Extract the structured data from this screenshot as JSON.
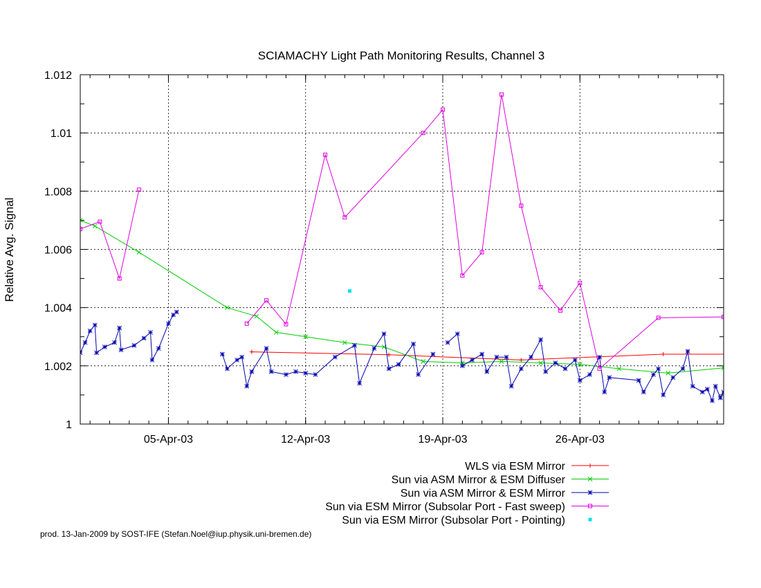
{
  "chart_data": {
    "type": "line",
    "title": "SCIAMACHY Light Path Monitoring Results, Channel 3",
    "xlabel": "",
    "ylabel": "Relative Avg. Signal",
    "x_unit": "date (2003)",
    "xlim": [
      "2003-03-31 12:00",
      "2003-05-03 08:00"
    ],
    "ylim": [
      1.0,
      1.012
    ],
    "y_ticks": [
      {
        "value": 1.0,
        "label": "1"
      },
      {
        "value": 1.002,
        "label": "1.002"
      },
      {
        "value": 1.004,
        "label": "1.004"
      },
      {
        "value": 1.006,
        "label": "1.006"
      },
      {
        "value": 1.008,
        "label": "1.008"
      },
      {
        "value": 1.01,
        "label": "1.01"
      },
      {
        "value": 1.012,
        "label": "1.012"
      }
    ],
    "x_ticks": [
      {
        "value": "2003-04-05",
        "label": "05-Apr-03"
      },
      {
        "value": "2003-04-12",
        "label": "12-Apr-03"
      },
      {
        "value": "2003-04-19",
        "label": "19-Apr-03"
      },
      {
        "value": "2003-04-26",
        "label": "26-Apr-03"
      }
    ],
    "grid": true,
    "legend_position": "below-right",
    "series": [
      {
        "name": "WLS via ESM Mirror",
        "color": "#ff0000",
        "marker": "plus",
        "line": true,
        "points": [
          [
            "2003-04-09 06:00",
            1.00248
          ],
          [
            "2003-04-16 06:00",
            1.00238
          ],
          [
            "2003-04-23 00:00",
            1.0022
          ],
          [
            "2003-04-30 06:00",
            1.0024
          ],
          [
            "2003-05-03 08:00",
            1.0024
          ]
        ]
      },
      {
        "name": "Sun via ASM Mirror & ESM Diffuser",
        "color": "#00cc00",
        "marker": "cross",
        "line": true,
        "points": [
          [
            "2003-03-31 12:00",
            1.007
          ],
          [
            "2003-04-01 06:00",
            1.0068
          ],
          [
            "2003-04-03 12:00",
            1.0059
          ],
          [
            "2003-04-08 00:00",
            1.004
          ],
          [
            "2003-04-09 12:00",
            1.0037
          ],
          [
            "2003-04-10 12:00",
            1.00315
          ],
          [
            "2003-04-12 00:00",
            1.003
          ],
          [
            "2003-04-14 00:00",
            1.0028
          ],
          [
            "2003-04-16 00:00",
            1.00265
          ],
          [
            "2003-04-18 00:00",
            1.00215
          ],
          [
            "2003-04-20 00:00",
            1.0021
          ],
          [
            "2003-04-22 00:00",
            1.00215
          ],
          [
            "2003-04-24 00:00",
            1.0021
          ],
          [
            "2003-04-26 00:00",
            1.00205
          ],
          [
            "2003-04-28 00:00",
            1.0019
          ],
          [
            "2003-04-30 12:00",
            1.00175
          ],
          [
            "2003-05-03 08:00",
            1.00193
          ]
        ]
      },
      {
        "name": "Sun via ASM Mirror & ESM Mirror",
        "color": "#0000b0",
        "marker": "star",
        "line": true,
        "segments": [
          [
            [
              "2003-03-31 12:00",
              1.00245
            ],
            [
              "2003-03-31 18:00",
              1.0028
            ],
            [
              "2003-04-01 00:00",
              1.0032
            ],
            [
              "2003-04-01 06:00",
              1.0034
            ],
            [
              "2003-04-01 08:00",
              1.00245
            ],
            [
              "2003-04-01 18:00",
              1.00265
            ],
            [
              "2003-04-02 06:00",
              1.0028
            ],
            [
              "2003-04-02 12:00",
              1.0033
            ],
            [
              "2003-04-02 14:00",
              1.00255
            ],
            [
              "2003-04-03 06:00",
              1.0027
            ],
            [
              "2003-04-03 18:00",
              1.00295
            ],
            [
              "2003-04-04 02:00",
              1.00315
            ],
            [
              "2003-04-04 04:00",
              1.0022
            ],
            [
              "2003-04-04 12:00",
              1.0026
            ],
            [
              "2003-04-05 00:00",
              1.00345
            ],
            [
              "2003-04-05 06:00",
              1.00375
            ],
            [
              "2003-04-05 10:00",
              1.00385
            ]
          ],
          [
            [
              "2003-04-07 18:00",
              1.0024
            ],
            [
              "2003-04-08 00:00",
              1.0019
            ],
            [
              "2003-04-08 12:00",
              1.0022
            ],
            [
              "2003-04-08 18:00",
              1.0023
            ],
            [
              "2003-04-09 00:00",
              1.0013
            ],
            [
              "2003-04-09 06:00",
              1.0018
            ],
            [
              "2003-04-10 00:00",
              1.0026
            ],
            [
              "2003-04-10 06:00",
              1.0018
            ],
            [
              "2003-04-11 00:00",
              1.0017
            ],
            [
              "2003-04-11 12:00",
              1.0018
            ],
            [
              "2003-04-12 00:00",
              1.00175
            ],
            [
              "2003-04-12 12:00",
              1.0017
            ],
            [
              "2003-04-13 12:00",
              1.0023
            ],
            [
              "2003-04-14 12:00",
              1.0027
            ],
            [
              "2003-04-14 18:00",
              1.0014
            ],
            [
              "2003-04-15 12:00",
              1.0026
            ],
            [
              "2003-04-16 00:00",
              1.0031
            ],
            [
              "2003-04-16 06:00",
              1.0019
            ],
            [
              "2003-04-16 18:00",
              1.00205
            ],
            [
              "2003-04-17 12:00",
              1.00275
            ],
            [
              "2003-04-17 18:00",
              1.0017
            ],
            [
              "2003-04-18 12:00",
              1.0024
            ]
          ],
          [
            [
              "2003-04-19 06:00",
              1.0028
            ],
            [
              "2003-04-19 18:00",
              1.0031
            ],
            [
              "2003-04-20 00:00",
              1.002
            ],
            [
              "2003-04-20 12:00",
              1.0022
            ],
            [
              "2003-04-21 00:00",
              1.0024
            ],
            [
              "2003-04-21 06:00",
              1.0018
            ],
            [
              "2003-04-21 18:00",
              1.0023
            ],
            [
              "2003-04-22 06:00",
              1.0023
            ],
            [
              "2003-04-22 12:00",
              1.0013
            ],
            [
              "2003-04-23 00:00",
              1.0019
            ],
            [
              "2003-04-23 12:00",
              1.0023
            ],
            [
              "2003-04-24 00:00",
              1.0029
            ],
            [
              "2003-04-24 06:00",
              1.0018
            ],
            [
              "2003-04-24 18:00",
              1.0021
            ],
            [
              "2003-04-25 06:00",
              1.0019
            ],
            [
              "2003-04-25 18:00",
              1.0022
            ],
            [
              "2003-04-26 00:00",
              1.0015
            ],
            [
              "2003-04-26 12:00",
              1.0017
            ],
            [
              "2003-04-27 00:00",
              1.0023
            ],
            [
              "2003-04-27 06:00",
              1.0011
            ],
            [
              "2003-04-27 12:00",
              1.0016
            ],
            [
              "2003-04-29 00:00",
              1.0015
            ],
            [
              "2003-04-29 06:00",
              1.0011
            ],
            [
              "2003-04-29 18:00",
              1.0017
            ],
            [
              "2003-04-30 00:00",
              1.0019
            ],
            [
              "2003-04-30 06:00",
              1.001
            ],
            [
              "2003-04-30 18:00",
              1.0016
            ],
            [
              "2003-05-01 06:00",
              1.0019
            ],
            [
              "2003-05-01 12:00",
              1.0025
            ],
            [
              "2003-05-01 18:00",
              1.0013
            ],
            [
              "2003-05-02 06:00",
              1.0011
            ],
            [
              "2003-05-02 12:00",
              1.0012
            ],
            [
              "2003-05-02 18:00",
              1.0008
            ],
            [
              "2003-05-02 22:00",
              1.0013
            ],
            [
              "2003-05-03 04:00",
              1.0009
            ],
            [
              "2003-05-03 08:00",
              1.0011
            ]
          ]
        ]
      },
      {
        "name": "Sun via ESM Mirror (Subsolar Port - Fast sweep)",
        "color": "#dd00dd",
        "marker": "square",
        "line": true,
        "segments": [
          [
            [
              "2003-03-31 12:00",
              1.0067
            ],
            [
              "2003-04-01 12:00",
              1.00695
            ],
            [
              "2003-04-02 12:00",
              1.005
            ],
            [
              "2003-04-03 12:00",
              1.00805
            ]
          ],
          [
            [
              "2003-04-09 00:00",
              1.00345
            ],
            [
              "2003-04-10 00:00",
              1.00425
            ],
            [
              "2003-04-11 00:00",
              1.00343
            ],
            [
              "2003-04-13 00:00",
              1.00925
            ],
            [
              "2003-04-14 00:00",
              1.0071
            ],
            [
              "2003-04-18 00:00",
              1.01
            ],
            [
              "2003-04-19 00:00",
              1.0108
            ],
            [
              "2003-04-20 00:00",
              1.0051
            ],
            [
              "2003-04-21 00:00",
              1.0059
            ],
            [
              "2003-04-22 00:00",
              1.01132
            ],
            [
              "2003-04-23 00:00",
              1.0075
            ],
            [
              "2003-04-24 00:00",
              1.0047
            ],
            [
              "2003-04-25 00:00",
              1.0039
            ],
            [
              "2003-04-26 00:00",
              1.00485
            ],
            [
              "2003-04-27 00:00",
              1.0019
            ],
            [
              "2003-04-30 00:00",
              1.00365
            ],
            [
              "2003-05-03 08:00",
              1.00368
            ]
          ]
        ]
      },
      {
        "name": "Sun via ESM Mirror (Subsolar Port - Pointing)",
        "color": "#00e0f0",
        "marker": "dot",
        "line": false,
        "points": [
          [
            "2003-04-14 06:00",
            1.00457
          ]
        ]
      }
    ]
  },
  "footer": "prod. 13-Jan-2009 by SOST-IFE (Stefan.Noel@iup.physik.uni-bremen.de)"
}
